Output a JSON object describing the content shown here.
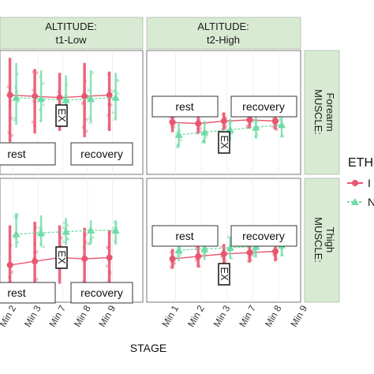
{
  "chart_data": {
    "type": "scatter",
    "facets": {
      "cols": [
        {
          "line1": "ALTITUDE:",
          "line2": "t1-Low"
        },
        {
          "line1": "ALTITUDE:",
          "line2": "t2-High"
        }
      ],
      "rows": [
        {
          "line1": "MUSCLE:",
          "line2": "Forearm"
        },
        {
          "line1": "MUSCLE:",
          "line2": "Thigh"
        }
      ]
    },
    "x_ticks": [
      "Min 1",
      "Min 2",
      "Min 3",
      "Min 7",
      "Min 8",
      "Min 9"
    ],
    "x_visible_left": [
      "Min 2",
      "Min 3",
      "Min 7",
      "Min 8",
      "Min 9"
    ],
    "x_visible_right": [
      "Min 1",
      "Min 2",
      "Min 3",
      "Min 7",
      "Min 8",
      "Min 9"
    ],
    "xlabel": "STAGE",
    "ylim": [
      0,
      100
    ],
    "annotations": {
      "rest": "rest",
      "recovery": "recovery",
      "ex": "EX"
    },
    "legend": {
      "title": "ETH",
      "entries": [
        "I",
        "N"
      ]
    },
    "colors": {
      "series1": "#e8566f",
      "series2": "#6fdba6",
      "strip": "#d9ead3",
      "panel": "#ffffff",
      "grid": "#e5e5e5"
    },
    "series": [
      {
        "marker": "circle",
        "color": "#e8566f",
        "panels": [
          {
            "mean": [
              60,
              64,
              63,
              62,
              63,
              64
            ],
            "low": [
              30,
              26,
              33,
              35,
              30,
              35
            ],
            "high": [
              88,
              94,
              85,
              82,
              90,
              83
            ]
          },
          {
            "mean": [
              42,
              41,
              43,
              44,
              43,
              44
            ],
            "low": [
              34,
              33,
              36,
              37,
              36,
              37
            ],
            "high": [
              50,
              49,
              50,
              51,
              50,
              51
            ]
          },
          {
            "mean": [
              28,
              30,
              33,
              36,
              35,
              36
            ],
            "low": [
              5,
              5,
              12,
              15,
              14,
              16
            ],
            "high": [
              52,
              62,
              65,
              62,
              60,
              58
            ]
          },
          {
            "mean": [
              35,
              37,
              39,
              40,
              41,
              42
            ],
            "low": [
              27,
              28,
              31,
              32,
              33,
              34
            ],
            "high": [
              43,
              46,
              47,
              48,
              49,
              50
            ]
          }
        ]
      },
      {
        "marker": "triangle",
        "color": "#6fdba6",
        "panels": [
          {
            "mean": [
              58,
              62,
              61,
              60,
              61,
              62
            ],
            "low": [
              36,
              40,
              42,
              40,
              42,
              44
            ],
            "high": [
              82,
              90,
              84,
              80,
              84,
              82
            ]
          },
          {
            "mean": [
              32,
              34,
              36,
              38,
              40,
              42
            ],
            "low": [
              22,
              25,
              27,
              29,
              31,
              33
            ],
            "high": [
              42,
              43,
              45,
              47,
              49,
              51
            ]
          },
          {
            "mean": [
              52,
              55,
              56,
              57,
              58,
              58
            ],
            "low": [
              40,
              44,
              45,
              46,
              47,
              47
            ],
            "high": [
              72,
              72,
              70,
              68,
              66,
              66
            ]
          },
          {
            "mean": [
              42,
              43,
              44,
              45,
              46,
              48
            ],
            "low": [
              33,
              34,
              35,
              36,
              37,
              38
            ],
            "high": [
              52,
              52,
              53,
              54,
              55,
              56
            ]
          }
        ]
      }
    ]
  }
}
